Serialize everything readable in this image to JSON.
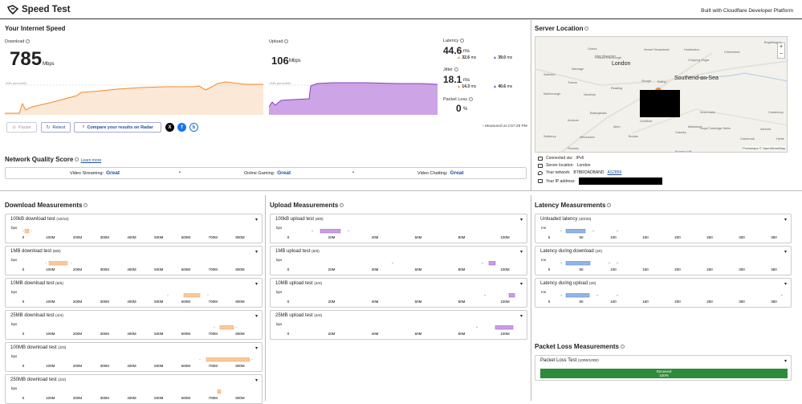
{
  "header": {
    "title": "Speed Test",
    "built_with": "Built with Cloudflare Developer Platform"
  },
  "speed": {
    "section_title": "Your Internet Speed",
    "download": {
      "label": "Download",
      "value": "785",
      "unit": "Mbps",
      "percentile_label": "90th percentile"
    },
    "upload": {
      "label": "Upload",
      "value": "106",
      "unit": "Mbps",
      "percentile_label": "90th percentile"
    },
    "latency": {
      "label": "Latency",
      "value": "44.6",
      "unit": "ms",
      "down": "32.6",
      "down_unit": "ms",
      "up": "39.0",
      "up_unit": "ms"
    },
    "jitter": {
      "label": "Jitter",
      "value": "18.1",
      "unit": "ms",
      "down": "14.3",
      "down_unit": "ms",
      "up": "40.6",
      "up_unit": "ms"
    },
    "packet_loss": {
      "label": "Packet Loss",
      "value": "0",
      "unit": "%"
    },
    "measured": "Measured at 2:57:29 PM"
  },
  "actions": {
    "pause": "Pause",
    "retest": "Retest",
    "compare": "Compare your results on Radar",
    "social": [
      "X",
      "f",
      "b"
    ]
  },
  "network_quality": {
    "title": "Network Quality Score",
    "learn_more": "Learn more",
    "items": [
      {
        "label": "Video Streaming:",
        "value": "Great"
      },
      {
        "label": "Online Gaming:",
        "value": "Great"
      },
      {
        "label": "Video Chatting:",
        "value": "Great"
      }
    ]
  },
  "server": {
    "title": "Server Location",
    "map_labels": [
      "Oxford",
      "High Wycombe",
      "London",
      "Southend-on-Sea",
      "Reading",
      "Slough",
      "Ealing",
      "Basingstoke",
      "Guildford",
      "Maidstone",
      "Canterbury",
      "Crawley",
      "Royal Tunbridge Wells",
      "Cranbrook",
      "Hythe",
      "Winchester",
      "Andover",
      "Newbury",
      "Marlborough",
      "Swindon",
      "Wantage",
      "Princes Risborough",
      "Hemel Hempstead",
      "Chelmsford",
      "Brightlingsea",
      "Salisbury",
      "Romsey",
      "Alton",
      "Bordon",
      "Sevenoaks",
      "Ashford",
      "Burgess Hill",
      "Chipping Ongar",
      "Hoddesdon",
      "Thame",
      "Ilford"
    ],
    "attribution": "Protomaps © OpenStreetMap",
    "rows": [
      {
        "label": "Connected via:",
        "value": "IPv6"
      },
      {
        "label": "Server location:",
        "value": "London"
      },
      {
        "label": "Your network:",
        "value": "BTBROADBAND",
        "link": "AS2856"
      },
      {
        "label": "Your IP address:",
        "value": ""
      }
    ],
    "zoom_in": "+",
    "zoom_out": "−"
  },
  "download_measurements": {
    "title": "Download Measurements",
    "unit": "bps",
    "ticks": [
      "0",
      "100M",
      "200M",
      "300M",
      "400M",
      "500M",
      "600M",
      "700M",
      "800M"
    ],
    "tests": [
      {
        "name": "100kB download test",
        "count": "(10/10)"
      },
      {
        "name": "1MB download test",
        "count": "(8/8)"
      },
      {
        "name": "10MB download test",
        "count": "(6/6)"
      },
      {
        "name": "25MB download test",
        "count": "(4/4)"
      },
      {
        "name": "100MB download test",
        "count": "(3/3)"
      },
      {
        "name": "250MB download test",
        "count": "(2/2)"
      }
    ]
  },
  "upload_measurements": {
    "title": "Upload Measurements",
    "unit": "bps",
    "ticks": [
      "0",
      "20M",
      "40M",
      "60M",
      "80M",
      "100M"
    ],
    "tests": [
      {
        "name": "100kB upload test",
        "count": "(8/8)"
      },
      {
        "name": "1MB upload test",
        "count": "(6/6)"
      },
      {
        "name": "10MB upload test",
        "count": "(4/4)"
      },
      {
        "name": "25MB upload test",
        "count": "(4/4)"
      }
    ]
  },
  "latency_measurements": {
    "title": "Latency Measurements",
    "unit": "ms",
    "ticks": [
      "0",
      "50",
      "100",
      "150",
      "200",
      "250",
      "300",
      "350"
    ],
    "tests": [
      {
        "name": "Unloaded latency",
        "count": "(20/20)"
      },
      {
        "name": "Latency during download",
        "count": "(20)"
      },
      {
        "name": "Latency during upload",
        "count": "(20)"
      }
    ]
  },
  "packet_loss_measurements": {
    "title": "Packet Loss Measurements",
    "test": {
      "name": "Packet Loss Test",
      "count": "(1000/1000)"
    },
    "bar_label": "Received",
    "bar_sub": "100%",
    "received_fraction": 1.0
  },
  "colors": {
    "download": "#f4a35a",
    "upload": "#a45bd1",
    "latency": "#4a84d4",
    "received": "#2e8b3c",
    "accent": "#1d4fa0"
  }
}
